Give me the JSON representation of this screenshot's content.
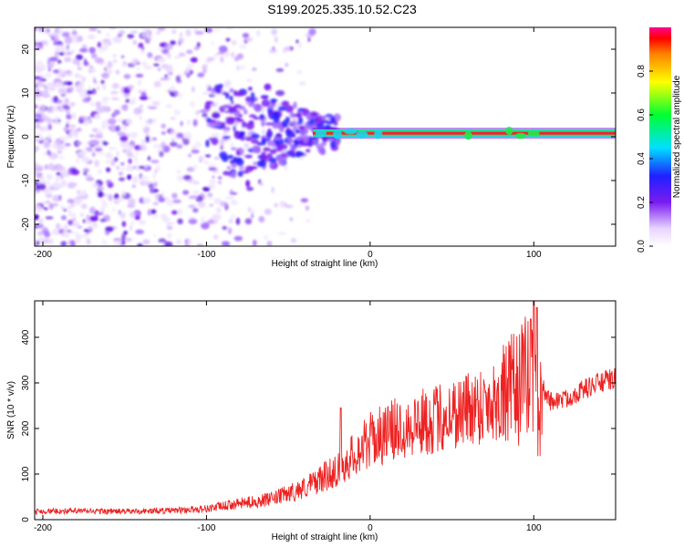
{
  "title": "S199.2025.335.10.52.C23",
  "colors": {
    "background": "#ffffff",
    "axis": "#000000",
    "snr_line": "#ee2222",
    "noise_purple": "#7a1cf0",
    "band_red": "#ff1a3a",
    "band_green": "#26e84a",
    "band_cyan": "#19d6e8"
  },
  "colorbar": {
    "label": "Normalized spectral amplitude",
    "ticks": [
      0.0,
      0.2,
      0.4,
      0.6,
      0.8
    ],
    "tick_labels": [
      "0.0",
      "0.2",
      "0.4",
      "0.6",
      "0.8"
    ],
    "range": [
      0,
      1
    ],
    "stops": [
      {
        "v": 0.0,
        "color": "#ffffff"
      },
      {
        "v": 0.08,
        "color": "#e8d4ff"
      },
      {
        "v": 0.2,
        "color": "#7a1cf0"
      },
      {
        "v": 0.32,
        "color": "#2020ff"
      },
      {
        "v": 0.45,
        "color": "#00e0ff"
      },
      {
        "v": 0.6,
        "color": "#00ff30"
      },
      {
        "v": 0.75,
        "color": "#ffff00"
      },
      {
        "v": 0.88,
        "color": "#ff8000"
      },
      {
        "v": 0.95,
        "color": "#ff0000"
      },
      {
        "v": 1.0,
        "color": "#ff0090"
      }
    ]
  },
  "chart_data": [
    {
      "type": "heatmap",
      "xlabel": "Height of straight line (km)",
      "ylabel": "Frequency (Hz)",
      "xlim": [
        -205,
        150
      ],
      "ylim": [
        -25,
        25
      ],
      "xticks": [
        -200,
        -100,
        0,
        100
      ],
      "xtick_labels": [
        "-200",
        "-100",
        "0",
        "100"
      ],
      "yticks": [
        -20,
        -10,
        0,
        10,
        20
      ],
      "ytick_labels": [
        "-20",
        "-10",
        "0",
        "10",
        "20"
      ],
      "description_regions": [
        {
          "x_range": [
            -205,
            -40
          ],
          "freq_range": [
            -25,
            25
          ],
          "amplitude": 0.15,
          "pattern": "scattered noise"
        },
        {
          "x_range": [
            -100,
            -20
          ],
          "freq_range": [
            -8,
            12
          ],
          "amplitude": 0.25,
          "pattern": "converging patches"
        },
        {
          "x_range": [
            -20,
            150
          ],
          "freq_range": [
            0.3,
            1.5
          ],
          "amplitude": 0.95,
          "pattern": "narrow tone band near 1 Hz"
        }
      ],
      "band": {
        "x_start": -35,
        "x_end": 150,
        "center_freq": 0.8,
        "width_hz": 1.6
      }
    },
    {
      "type": "line",
      "xlabel": "Height of straight line (km)",
      "ylabel": "SNR (10 * v/v)",
      "xlim": [
        -205,
        150
      ],
      "ylim": [
        0,
        480
      ],
      "xticks": [
        -200,
        -100,
        0,
        100
      ],
      "xtick_labels": [
        "-200",
        "-100",
        "0",
        "100"
      ],
      "yticks": [
        0,
        100,
        200,
        300,
        400
      ],
      "ytick_labels": [
        "0",
        "100",
        "200",
        "300",
        "400"
      ],
      "series": [
        {
          "name": "SNR",
          "x": [
            -205,
            -180,
            -150,
            -120,
            -100,
            -80,
            -60,
            -40,
            -20,
            0,
            20,
            40,
            60,
            80,
            90,
            95,
            100,
            103,
            105,
            110,
            120,
            130,
            140,
            150
          ],
          "y": [
            18,
            19,
            18,
            20,
            24,
            35,
            45,
            70,
            110,
            175,
            205,
            220,
            245,
            265,
            290,
            310,
            330,
            180,
            290,
            260,
            265,
            285,
            300,
            310
          ],
          "spike_x": [
            -18,
            98,
            100,
            102
          ],
          "spike_y": [
            245,
            440,
            480,
            465
          ]
        }
      ]
    }
  ]
}
